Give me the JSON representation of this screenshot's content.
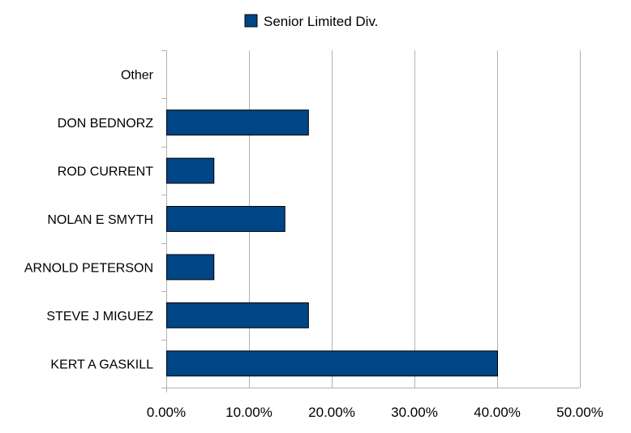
{
  "chart_data": {
    "type": "bar",
    "orientation": "horizontal",
    "title": "",
    "xlabel": "",
    "ylabel": "",
    "categories": [
      "Other",
      "DON BEDNORZ",
      "ROD CURRENT",
      "NOLAN E SMYTH",
      "ARNOLD PETERSON",
      "STEVE J MIGUEZ",
      "KERT A GASKILL"
    ],
    "series": [
      {
        "name": "Senior Limited Div.",
        "color": "#004586",
        "values": [
          0.0,
          17.14,
          5.71,
          14.29,
          5.71,
          17.14,
          40.0
        ]
      }
    ],
    "xlim": [
      0,
      50
    ],
    "xticks": [
      0,
      10,
      20,
      30,
      40,
      50
    ],
    "xtick_labels": [
      "0.00%",
      "10.00%",
      "20.00%",
      "30.00%",
      "40.00%",
      "50.00%"
    ],
    "value_format": "percent",
    "grid": "vertical",
    "legend": "top-center",
    "colors": {
      "bar": "#004586",
      "bar_outline": "#000000",
      "grid": "#b3b3b3",
      "axis": "#b3b3b3"
    }
  }
}
